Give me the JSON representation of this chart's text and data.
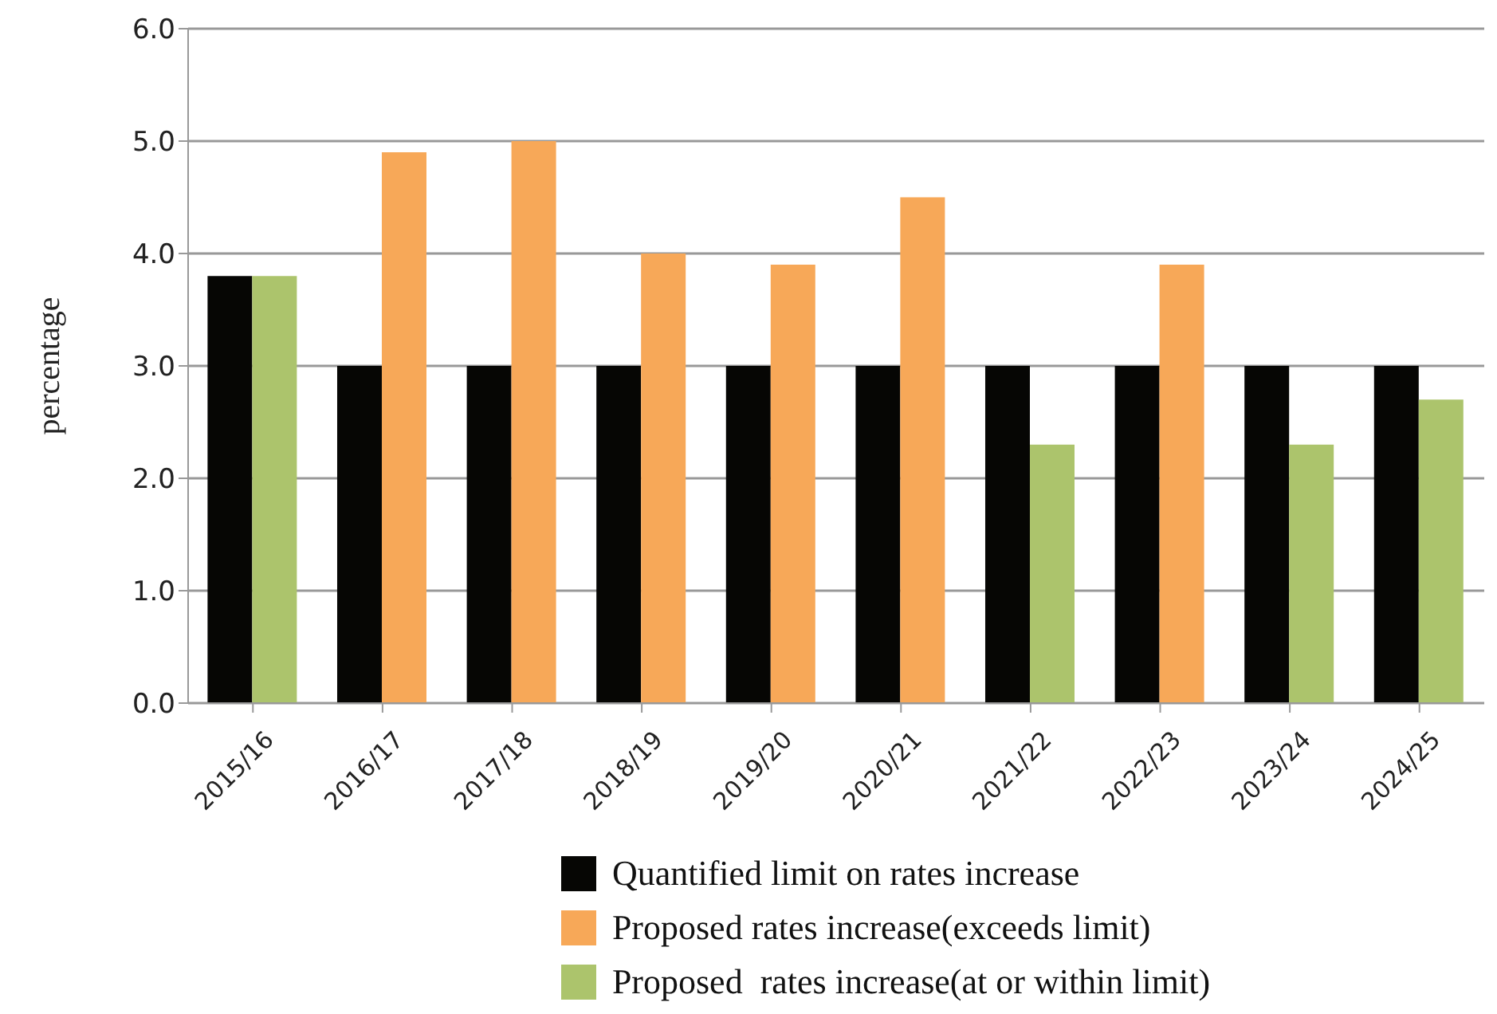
{
  "chart_data": {
    "type": "bar",
    "ylabel": "percentage",
    "categories": [
      "2015/16",
      "2016/17",
      "2017/18",
      "2018/19",
      "2019/20",
      "2020/21",
      "2021/22",
      "2022/23",
      "2023/24",
      "2024/25"
    ],
    "series": [
      {
        "name": "Quantified limit on rates increase",
        "color": "#060604",
        "values": [
          3.8,
          3,
          3,
          3,
          3,
          3,
          3,
          3,
          3,
          3
        ]
      },
      {
        "name": "Proposed rates increase(exceeds limit)",
        "color": "#f7a858",
        "values": [
          null,
          4.9,
          5.0,
          4.0,
          3.9,
          4.5,
          null,
          3.9,
          null,
          null
        ]
      },
      {
        "name": "Proposed  rates increase(at or within limit)",
        "color": "#acc46c",
        "values": [
          3.8,
          null,
          null,
          null,
          null,
          null,
          2.3,
          null,
          2.3,
          2.7
        ]
      }
    ],
    "ylim": [
      0,
      6
    ],
    "yticks": [
      {
        "value": 0,
        "label": "0.0"
      },
      {
        "value": 1,
        "label": "1.0"
      },
      {
        "value": 2,
        "label": "2.0"
      },
      {
        "value": 3,
        "label": "3.0"
      },
      {
        "value": 4,
        "label": "4.0"
      },
      {
        "value": 5,
        "label": "5.0"
      },
      {
        "value": 6,
        "label": "6.0"
      }
    ],
    "grid": "y",
    "legend": "bottom"
  }
}
